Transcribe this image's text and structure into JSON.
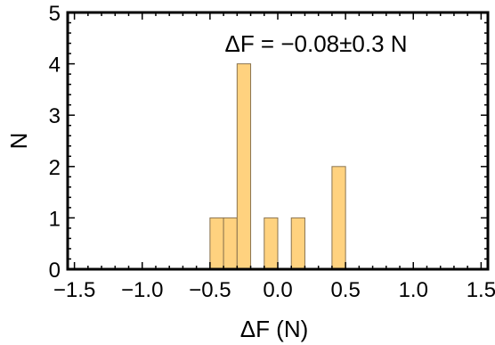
{
  "chart_data": {
    "type": "bar",
    "subtype": "histogram",
    "annotation": "ΔF = −0.08±0.3 N",
    "xlabel": "ΔF (N)",
    "ylabel": "N",
    "xlim": [
      -1.55,
      1.55
    ],
    "ylim": [
      0,
      5
    ],
    "bin_width": 0.1,
    "bins": [
      {
        "start": -0.5,
        "end": -0.4,
        "count": 1
      },
      {
        "start": -0.4,
        "end": -0.3,
        "count": 1
      },
      {
        "start": -0.3,
        "end": -0.2,
        "count": 4
      },
      {
        "start": -0.1,
        "end": 0.0,
        "count": 1
      },
      {
        "start": 0.1,
        "end": 0.2,
        "count": 1
      },
      {
        "start": 0.4,
        "end": 0.5,
        "count": 2
      }
    ],
    "x_ticks": [
      -1.5,
      -1.0,
      -0.5,
      0.0,
      0.5,
      1.0,
      1.5
    ],
    "x_tick_labels": [
      "−1.5",
      "−1.0",
      "−0.5",
      "0.0",
      "0.5",
      "1.0",
      "1.5"
    ],
    "y_ticks": [
      0,
      1,
      2,
      3,
      4,
      5
    ],
    "y_tick_labels": [
      "0",
      "1",
      "2",
      "3",
      "4",
      "5"
    ],
    "grid": false,
    "colors": {
      "bar_fill": "#ffd27f",
      "bar_stroke": "#8a7450",
      "frame": "#000000"
    }
  }
}
